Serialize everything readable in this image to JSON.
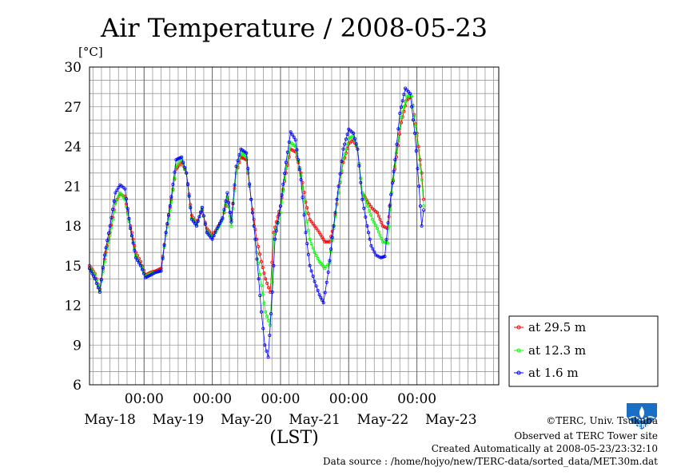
{
  "chart_data": {
    "type": "line",
    "title": "Air Temperature / 2008-05-23",
    "ylabel": "[°C]",
    "xlabel": "(LST)",
    "ylim": [
      6,
      30
    ],
    "yticks": [
      6,
      9,
      12,
      15,
      18,
      21,
      24,
      27,
      30
    ],
    "x_unit": "days since 2008-05-17 00:00",
    "xlim": [
      0.2,
      6.2
    ],
    "time_ticks": [
      {
        "x": 1,
        "label": "00:00"
      },
      {
        "x": 2,
        "label": "00:00"
      },
      {
        "x": 3,
        "label": "00:00"
      },
      {
        "x": 4,
        "label": "00:00"
      },
      {
        "x": 5,
        "label": "00:00"
      }
    ],
    "date_labels": [
      {
        "x": 0.5,
        "label": "May-18"
      },
      {
        "x": 1.5,
        "label": "May-19"
      },
      {
        "x": 2.5,
        "label": "May-20"
      },
      {
        "x": 3.5,
        "label": "May-21"
      },
      {
        "x": 4.5,
        "label": "May-22"
      },
      {
        "x": 5.5,
        "label": "May-23"
      }
    ],
    "grid": true,
    "legend_position": "right",
    "series": [
      {
        "name": "at 29.5 m",
        "color": "#ff0000",
        "points": [
          [
            0.2,
            15.0
          ],
          [
            0.28,
            14.4
          ],
          [
            0.35,
            13.2
          ],
          [
            0.42,
            15.5
          ],
          [
            0.5,
            17.5
          ],
          [
            0.58,
            19.8
          ],
          [
            0.65,
            20.4
          ],
          [
            0.72,
            20.2
          ],
          [
            0.8,
            18.0
          ],
          [
            0.88,
            16.0
          ],
          [
            0.95,
            15.3
          ],
          [
            1.02,
            14.3
          ],
          [
            1.1,
            14.5
          ],
          [
            1.17,
            14.6
          ],
          [
            1.25,
            14.8
          ],
          [
            1.32,
            17.5
          ],
          [
            1.4,
            20.0
          ],
          [
            1.47,
            22.3
          ],
          [
            1.55,
            22.8
          ],
          [
            1.62,
            22.0
          ],
          [
            1.7,
            18.8
          ],
          [
            1.77,
            18.2
          ],
          [
            1.85,
            19.2
          ],
          [
            1.92,
            17.8
          ],
          [
            2.0,
            17.3
          ],
          [
            2.07,
            17.8
          ],
          [
            2.15,
            18.5
          ],
          [
            2.22,
            20.0
          ],
          [
            2.28,
            18.5
          ],
          [
            2.35,
            22.0
          ],
          [
            2.42,
            23.2
          ],
          [
            2.5,
            23.0
          ],
          [
            2.57,
            20.0
          ],
          [
            2.65,
            17.0
          ],
          [
            2.72,
            15.3
          ],
          [
            2.78,
            14.0
          ],
          [
            2.85,
            13.0
          ],
          [
            2.9,
            17.5
          ],
          [
            3.0,
            19.5
          ],
          [
            3.08,
            22.0
          ],
          [
            3.15,
            23.8
          ],
          [
            3.22,
            23.6
          ],
          [
            3.3,
            22.0
          ],
          [
            3.37,
            19.8
          ],
          [
            3.43,
            18.5
          ],
          [
            3.5,
            18.0
          ],
          [
            3.57,
            17.5
          ],
          [
            3.65,
            16.8
          ],
          [
            3.72,
            16.8
          ],
          [
            3.78,
            18.0
          ],
          [
            3.85,
            20.5
          ],
          [
            3.92,
            22.8
          ],
          [
            4.0,
            24.2
          ],
          [
            4.07,
            24.5
          ],
          [
            4.13,
            23.8
          ],
          [
            4.2,
            20.5
          ],
          [
            4.28,
            19.8
          ],
          [
            4.35,
            19.3
          ],
          [
            4.42,
            19.0
          ],
          [
            4.5,
            18.0
          ],
          [
            4.57,
            17.8
          ],
          [
            4.63,
            20.5
          ],
          [
            4.7,
            23.2
          ],
          [
            4.77,
            25.8
          ],
          [
            4.85,
            27.5
          ],
          [
            4.92,
            27.8
          ],
          [
            5.0,
            25.0
          ],
          [
            5.07,
            22.0
          ],
          [
            5.1,
            20.0
          ]
        ]
      },
      {
        "name": "at 12.3 m",
        "color": "#00ff00",
        "points": [
          [
            0.2,
            14.8
          ],
          [
            0.28,
            14.3
          ],
          [
            0.35,
            13.1
          ],
          [
            0.42,
            15.3
          ],
          [
            0.5,
            17.3
          ],
          [
            0.58,
            19.7
          ],
          [
            0.65,
            20.5
          ],
          [
            0.72,
            20.0
          ],
          [
            0.8,
            17.8
          ],
          [
            0.88,
            15.8
          ],
          [
            0.95,
            15.1
          ],
          [
            1.02,
            14.2
          ],
          [
            1.1,
            14.4
          ],
          [
            1.17,
            14.5
          ],
          [
            1.25,
            14.6
          ],
          [
            1.32,
            17.3
          ],
          [
            1.4,
            19.8
          ],
          [
            1.47,
            22.5
          ],
          [
            1.55,
            23.0
          ],
          [
            1.62,
            22.0
          ],
          [
            1.7,
            18.6
          ],
          [
            1.77,
            18.1
          ],
          [
            1.85,
            19.3
          ],
          [
            1.92,
            17.6
          ],
          [
            2.0,
            17.1
          ],
          [
            2.07,
            17.7
          ],
          [
            2.15,
            18.5
          ],
          [
            2.22,
            20.2
          ],
          [
            2.28,
            18.0
          ],
          [
            2.35,
            22.0
          ],
          [
            2.42,
            23.5
          ],
          [
            2.5,
            23.2
          ],
          [
            2.57,
            20.0
          ],
          [
            2.65,
            16.0
          ],
          [
            2.72,
            13.5
          ],
          [
            2.78,
            11.5
          ],
          [
            2.85,
            10.5
          ],
          [
            2.9,
            17.0
          ],
          [
            3.0,
            19.0
          ],
          [
            3.08,
            22.3
          ],
          [
            3.15,
            24.3
          ],
          [
            3.22,
            24.0
          ],
          [
            3.3,
            21.8
          ],
          [
            3.37,
            19.0
          ],
          [
            3.43,
            17.0
          ],
          [
            3.5,
            16.0
          ],
          [
            3.57,
            15.3
          ],
          [
            3.65,
            14.8
          ],
          [
            3.72,
            15.2
          ],
          [
            3.78,
            17.8
          ],
          [
            3.85,
            20.5
          ],
          [
            3.92,
            23.0
          ],
          [
            4.0,
            24.6
          ],
          [
            4.07,
            24.8
          ],
          [
            4.13,
            23.8
          ],
          [
            4.2,
            20.5
          ],
          [
            4.28,
            19.5
          ],
          [
            4.35,
            18.5
          ],
          [
            4.42,
            17.8
          ],
          [
            4.5,
            16.8
          ],
          [
            4.57,
            16.7
          ],
          [
            4.63,
            20.5
          ],
          [
            4.7,
            23.5
          ],
          [
            4.77,
            26.2
          ],
          [
            4.85,
            27.8
          ],
          [
            4.92,
            27.8
          ],
          [
            5.0,
            24.8
          ],
          [
            5.07,
            21.5
          ],
          [
            5.1,
            19.5
          ]
        ]
      },
      {
        "name": "at 1.6 m",
        "color": "#0000ff",
        "points": [
          [
            0.2,
            14.8
          ],
          [
            0.28,
            14.0
          ],
          [
            0.35,
            13.0
          ],
          [
            0.42,
            15.8
          ],
          [
            0.5,
            18.0
          ],
          [
            0.58,
            20.5
          ],
          [
            0.65,
            21.1
          ],
          [
            0.72,
            20.8
          ],
          [
            0.8,
            17.8
          ],
          [
            0.88,
            15.6
          ],
          [
            0.95,
            15.0
          ],
          [
            1.02,
            14.1
          ],
          [
            1.1,
            14.3
          ],
          [
            1.17,
            14.5
          ],
          [
            1.25,
            14.6
          ],
          [
            1.32,
            17.5
          ],
          [
            1.4,
            20.2
          ],
          [
            1.47,
            23.0
          ],
          [
            1.55,
            23.2
          ],
          [
            1.62,
            22.0
          ],
          [
            1.7,
            18.5
          ],
          [
            1.77,
            18.0
          ],
          [
            1.85,
            19.4
          ],
          [
            1.92,
            17.5
          ],
          [
            2.0,
            17.0
          ],
          [
            2.07,
            17.8
          ],
          [
            2.15,
            18.6
          ],
          [
            2.22,
            20.5
          ],
          [
            2.28,
            18.3
          ],
          [
            2.35,
            22.5
          ],
          [
            2.42,
            23.8
          ],
          [
            2.5,
            23.5
          ],
          [
            2.57,
            20.0
          ],
          [
            2.63,
            17.0
          ],
          [
            2.68,
            14.0
          ],
          [
            2.72,
            11.5
          ],
          [
            2.77,
            9.0
          ],
          [
            2.82,
            8.1
          ],
          [
            2.88,
            13.0
          ],
          [
            2.92,
            17.0
          ],
          [
            3.0,
            19.5
          ],
          [
            3.08,
            22.8
          ],
          [
            3.15,
            25.1
          ],
          [
            3.22,
            24.5
          ],
          [
            3.3,
            21.5
          ],
          [
            3.37,
            17.5
          ],
          [
            3.43,
            15.0
          ],
          [
            3.5,
            13.8
          ],
          [
            3.57,
            12.8
          ],
          [
            3.63,
            12.2
          ],
          [
            3.7,
            14.5
          ],
          [
            3.78,
            18.0
          ],
          [
            3.85,
            21.0
          ],
          [
            3.92,
            23.8
          ],
          [
            4.0,
            25.3
          ],
          [
            4.07,
            25.0
          ],
          [
            4.13,
            23.8
          ],
          [
            4.2,
            20.0
          ],
          [
            4.27,
            18.0
          ],
          [
            4.33,
            16.5
          ],
          [
            4.4,
            15.8
          ],
          [
            4.47,
            15.6
          ],
          [
            4.53,
            15.7
          ],
          [
            4.6,
            19.5
          ],
          [
            4.68,
            23.0
          ],
          [
            4.75,
            26.5
          ],
          [
            4.83,
            28.4
          ],
          [
            4.9,
            28.0
          ],
          [
            4.97,
            25.0
          ],
          [
            5.03,
            21.0
          ],
          [
            5.07,
            18.0
          ],
          [
            5.1,
            19.2
          ]
        ]
      }
    ]
  },
  "footer": {
    "copyright": "©TERC, Univ. Tsukuba",
    "observed": "Observed at TERC Tower site",
    "created": "Created Automatically at 2008-05-23/23:32:10",
    "source": "Data source : /home/hojyo/new/TERC-data/sorted_data/MET.30m.dat"
  },
  "logo": {
    "text": "TERC",
    "color": "#1a6fc4"
  }
}
